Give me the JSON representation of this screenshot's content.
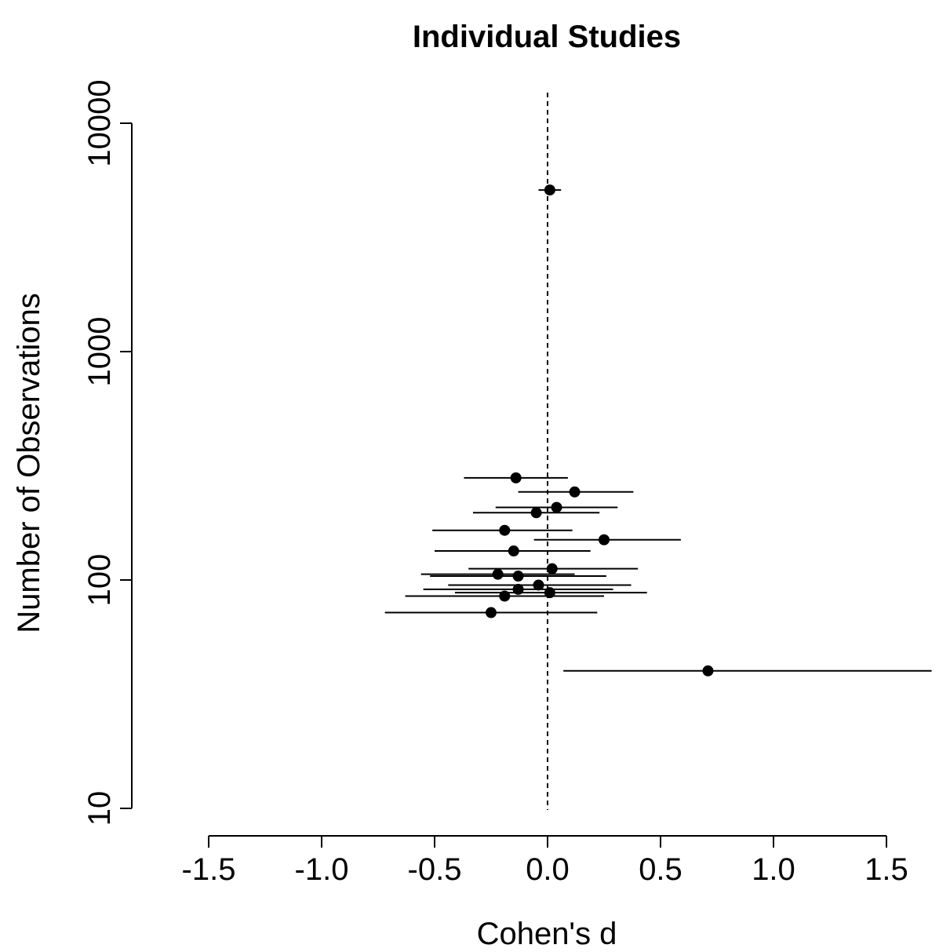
{
  "chart_data": {
    "type": "scatter",
    "title": "Individual Studies",
    "xlabel": "Cohen's d",
    "ylabel": "Number of Observations",
    "xlim": [
      -1.5,
      1.5
    ],
    "ylim": [
      10,
      10000
    ],
    "yscale": "log",
    "x_ticks": [
      -1.5,
      -1.0,
      -0.5,
      0.0,
      0.5,
      1.0,
      1.5
    ],
    "x_tick_labels": [
      "-1.5",
      "-1.0",
      "-0.5",
      "0.0",
      "0.5",
      "1.0",
      "1.5"
    ],
    "y_ticks": [
      10,
      100,
      1000,
      10000
    ],
    "y_tick_labels": [
      "10",
      "100",
      "1000",
      "10000"
    ],
    "reference_line_x": 0.0,
    "reference_line_style": "dashed",
    "points": [
      {
        "d": 0.01,
        "n": 5100,
        "lo": -0.04,
        "hi": 0.06
      },
      {
        "d": -0.14,
        "n": 280,
        "lo": -0.37,
        "hi": 0.09
      },
      {
        "d": 0.12,
        "n": 243,
        "lo": -0.13,
        "hi": 0.38
      },
      {
        "d": 0.04,
        "n": 208,
        "lo": -0.23,
        "hi": 0.31
      },
      {
        "d": -0.05,
        "n": 197,
        "lo": -0.33,
        "hi": 0.23
      },
      {
        "d": -0.19,
        "n": 165,
        "lo": -0.51,
        "hi": 0.11
      },
      {
        "d": 0.25,
        "n": 150,
        "lo": -0.06,
        "hi": 0.59
      },
      {
        "d": -0.15,
        "n": 134,
        "lo": -0.5,
        "hi": 0.19
      },
      {
        "d": 0.02,
        "n": 112,
        "lo": -0.35,
        "hi": 0.4
      },
      {
        "d": -0.22,
        "n": 106,
        "lo": -0.56,
        "hi": 0.12
      },
      {
        "d": -0.13,
        "n": 104,
        "lo": -0.52,
        "hi": 0.26
      },
      {
        "d": -0.04,
        "n": 95,
        "lo": -0.44,
        "hi": 0.37
      },
      {
        "d": -0.13,
        "n": 91,
        "lo": -0.55,
        "hi": 0.29
      },
      {
        "d": 0.01,
        "n": 88,
        "lo": -0.41,
        "hi": 0.44
      },
      {
        "d": -0.19,
        "n": 85,
        "lo": -0.63,
        "hi": 0.25
      },
      {
        "d": -0.25,
        "n": 72,
        "lo": -0.72,
        "hi": 0.22
      },
      {
        "d": 0.71,
        "n": 40,
        "lo": 0.07,
        "hi": 1.7
      }
    ]
  }
}
